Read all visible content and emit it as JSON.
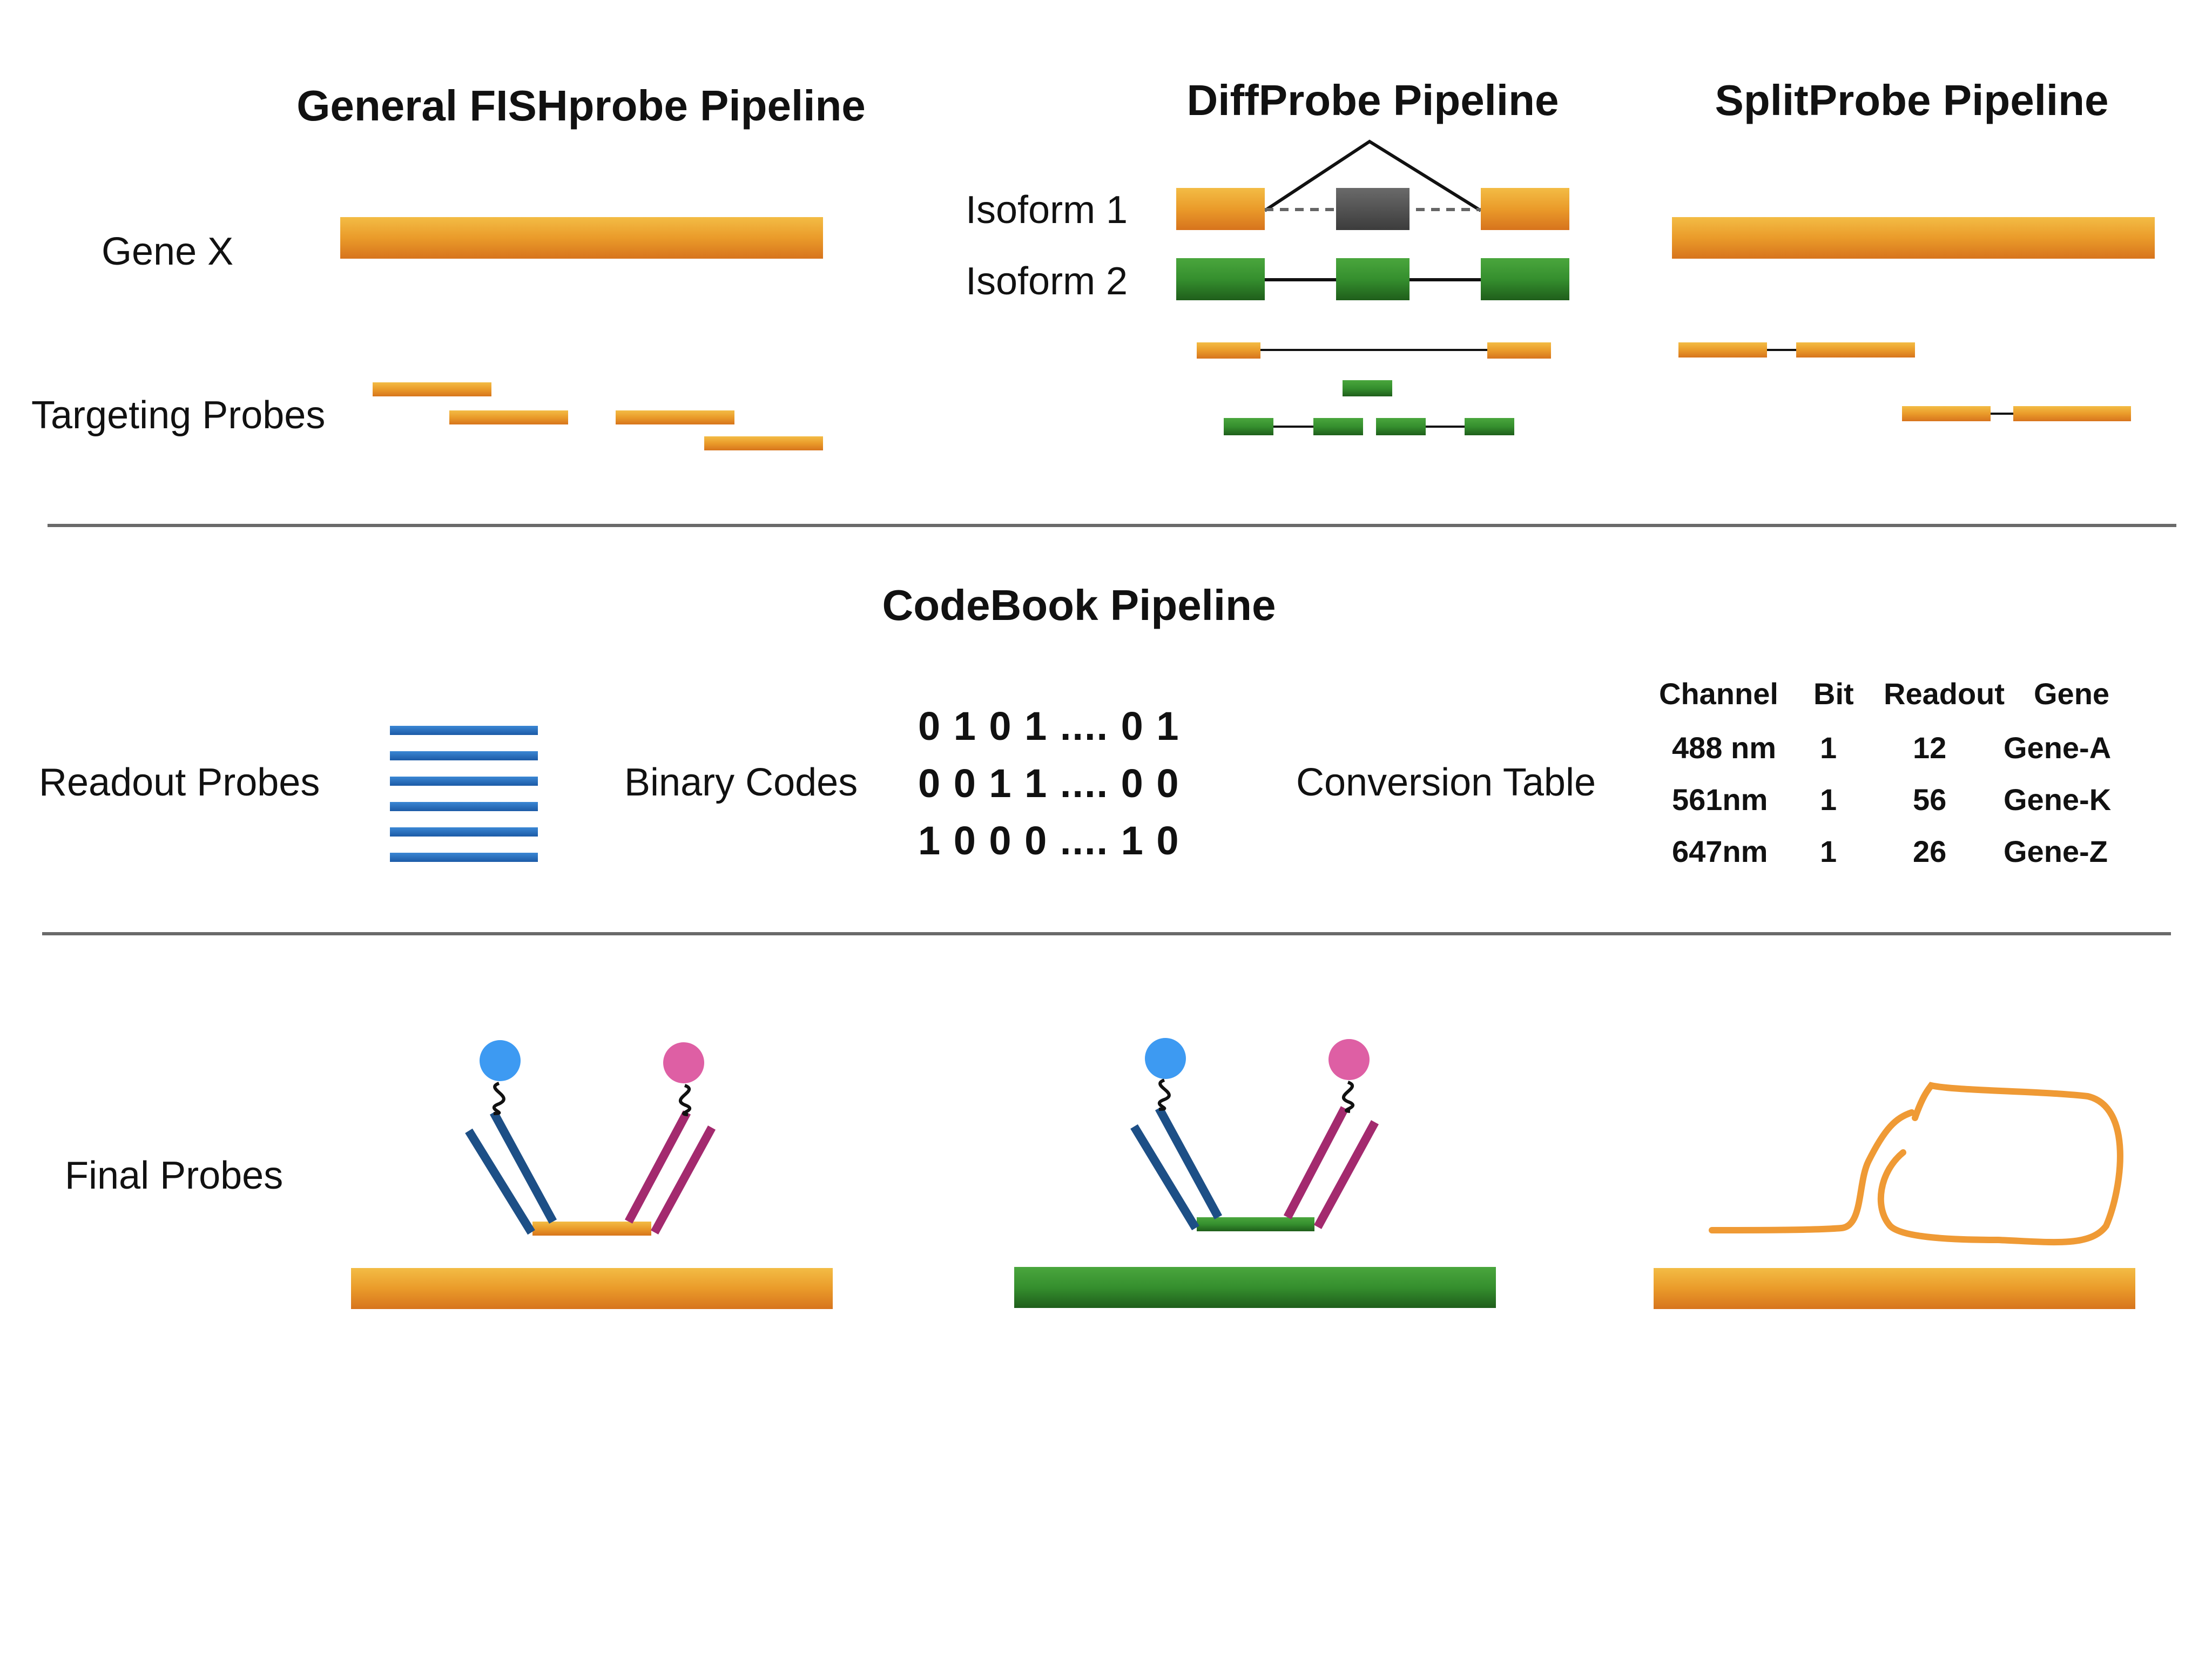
{
  "titles": {
    "general": "General FISHprobe Pipeline",
    "diff": "DiffProbe Pipeline",
    "split": "SplitProbe Pipeline",
    "codebook": "CodeBook Pipeline"
  },
  "labels": {
    "gene_x": "Gene X",
    "targeting_probes": "Targeting Probes",
    "isoform1": "Isoform 1",
    "isoform2": "Isoform 2",
    "readout_probes": "Readout Probes",
    "binary_codes": "Binary Codes",
    "conversion_table": "Conversion Table",
    "final_probes": "Final Probes"
  },
  "binary_codes": [
    "0  1  0  1  .... 0  1",
    "0  0  1  1  .... 0  0",
    "1  0  0  0  .... 1  0"
  ],
  "conversion_table": {
    "headers": [
      "Channel",
      "Bit",
      "Readout",
      "Gene"
    ],
    "rows": [
      [
        "488 nm",
        "1",
        "12",
        "Gene-A"
      ],
      [
        "561nm",
        "1",
        "56",
        "Gene-K"
      ],
      [
        "647nm",
        "1",
        "26",
        "Gene-Z"
      ]
    ]
  },
  "colors": {
    "orange": "#e8951f",
    "green": "#2f8a2a",
    "gray": "#4a4a4a",
    "blue_probe": "#2266b8",
    "navy_probe": "#1d4f86",
    "magenta_probe": "#a32a6e",
    "fluor_blue": "#3d9af2",
    "fluor_pink": "#de5fa4",
    "divider": "#6a6a6a"
  }
}
